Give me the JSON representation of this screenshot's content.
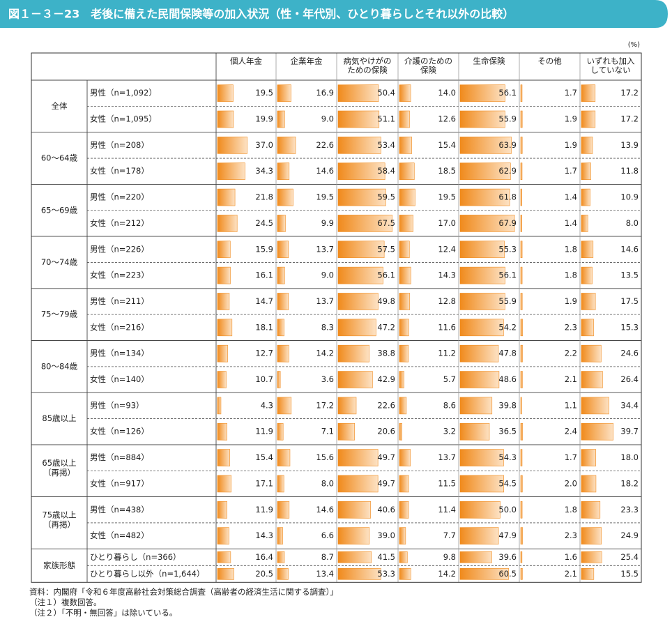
{
  "chart_data": {
    "type": "bar-table",
    "title": "図１－３－23　老後に備えた民間保険等の加入状況（性・年代別、ひとり暮らしとそれ以外の比較）",
    "unit": "(%)",
    "columns": [
      [
        "個人年金"
      ],
      [
        "企業年金"
      ],
      [
        "病気やけがの",
        "ための保険"
      ],
      [
        "介護のための",
        "保険"
      ],
      [
        "生命保険"
      ],
      [
        "その他"
      ],
      [
        "いずれも加入",
        "していない"
      ]
    ],
    "groups": [
      {
        "label": [
          "全体"
        ],
        "rows": [
          {
            "label": "男性（n=1,092）",
            "values": [
              19.5,
              16.9,
              50.4,
              14.0,
              56.1,
              1.7,
              17.2
            ],
            "value_labels": [
              "19.5",
              "16.9",
              "50.4",
              "14.0",
              "56.1",
              "1.7",
              "17.2"
            ]
          },
          {
            "label": "女性（n=1,095）",
            "values": [
              19.9,
              9.0,
              51.1,
              12.6,
              55.9,
              1.9,
              17.2
            ],
            "value_labels": [
              "19.9",
              "9.0",
              "51.1",
              "12.6",
              "55.9",
              "1.9",
              "17.2"
            ]
          }
        ]
      },
      {
        "label": [
          "60～64歳"
        ],
        "rows": [
          {
            "label": "男性（n=208）",
            "values": [
              37.0,
              22.6,
              53.4,
              15.4,
              63.9,
              1.9,
              13.9
            ],
            "value_labels": [
              "37.0",
              "22.6",
              "53.4",
              "15.4",
              "63.9",
              "1.9",
              "13.9"
            ]
          },
          {
            "label": "女性（n=178）",
            "values": [
              34.3,
              14.6,
              58.4,
              18.5,
              62.9,
              1.7,
              11.8
            ],
            "value_labels": [
              "34.3",
              "14.6",
              "58.4",
              "18.5",
              "62.9",
              "1.7",
              "11.8"
            ]
          }
        ]
      },
      {
        "label": [
          "65～69歳"
        ],
        "rows": [
          {
            "label": "男性（n=220）",
            "values": [
              21.8,
              19.5,
              59.5,
              19.5,
              61.8,
              1.4,
              10.9
            ],
            "value_labels": [
              "21.8",
              "19.5",
              "59.5",
              "19.5",
              "61.8",
              "1.4",
              "10.9"
            ]
          },
          {
            "label": "女性（n=212）",
            "values": [
              24.5,
              9.9,
              67.5,
              17.0,
              67.9,
              1.4,
              8.0
            ],
            "value_labels": [
              "24.5",
              "9.9",
              "67.5",
              "17.0",
              "67.9",
              "1.4",
              "8.0"
            ]
          }
        ]
      },
      {
        "label": [
          "70～74歳"
        ],
        "rows": [
          {
            "label": "男性（n=226）",
            "values": [
              15.9,
              13.7,
              57.5,
              12.4,
              55.3,
              1.8,
              14.6
            ],
            "value_labels": [
              "15.9",
              "13.7",
              "57.5",
              "12.4",
              "55.3",
              "1.8",
              "14.6"
            ]
          },
          {
            "label": "女性（n=223）",
            "values": [
              16.1,
              9.0,
              56.1,
              14.3,
              56.1,
              1.8,
              13.5
            ],
            "value_labels": [
              "16.1",
              "9.0",
              "56.1",
              "14.3",
              "56.1",
              "1.8",
              "13.5"
            ]
          }
        ]
      },
      {
        "label": [
          "75～79歳"
        ],
        "rows": [
          {
            "label": "男性（n=211）",
            "values": [
              14.7,
              13.7,
              49.8,
              12.8,
              55.9,
              1.9,
              17.5
            ],
            "value_labels": [
              "14.7",
              "13.7",
              "49.8",
              "12.8",
              "55.9",
              "1.9",
              "17.5"
            ]
          },
          {
            "label": "女性（n=216）",
            "values": [
              18.1,
              8.3,
              47.2,
              11.6,
              54.2,
              2.3,
              15.3
            ],
            "value_labels": [
              "18.1",
              "8.3",
              "47.2",
              "11.6",
              "54.2",
              "2.3",
              "15.3"
            ]
          }
        ]
      },
      {
        "label": [
          "80～84歳"
        ],
        "rows": [
          {
            "label": "男性（n=134）",
            "values": [
              12.7,
              14.2,
              38.8,
              11.2,
              47.8,
              2.2,
              24.6
            ],
            "value_labels": [
              "12.7",
              "14.2",
              "38.8",
              "11.2",
              "47.8",
              "2.2",
              "24.6"
            ]
          },
          {
            "label": "女性（n=140）",
            "values": [
              10.7,
              3.6,
              42.9,
              5.7,
              48.6,
              2.1,
              26.4
            ],
            "value_labels": [
              "10.7",
              "3.6",
              "42.9",
              "5.7",
              "48.6",
              "2.1",
              "26.4"
            ]
          }
        ]
      },
      {
        "label": [
          "85歳以上"
        ],
        "rows": [
          {
            "label": "男性（n=93）",
            "values": [
              4.3,
              17.2,
              22.6,
              8.6,
              39.8,
              1.1,
              34.4
            ],
            "value_labels": [
              "4.3",
              "17.2",
              "22.6",
              "8.6",
              "39.8",
              "1.1",
              "34.4"
            ]
          },
          {
            "label": "女性（n=126）",
            "values": [
              11.9,
              7.1,
              20.6,
              3.2,
              36.5,
              2.4,
              39.7
            ],
            "value_labels": [
              "11.9",
              "7.1",
              "20.6",
              "3.2",
              "36.5",
              "2.4",
              "39.7"
            ]
          }
        ]
      },
      {
        "label": [
          "65歳以上",
          "（再掲）"
        ],
        "rows": [
          {
            "label": "男性（n=884）",
            "values": [
              15.4,
              15.6,
              49.7,
              13.7,
              54.3,
              1.7,
              18.0
            ],
            "value_labels": [
              "15.4",
              "15.6",
              "49.7",
              "13.7",
              "54.3",
              "1.7",
              "18.0"
            ]
          },
          {
            "label": "女性（n=917）",
            "values": [
              17.1,
              8.0,
              49.7,
              11.5,
              54.5,
              2.0,
              18.2
            ],
            "value_labels": [
              "17.1",
              "8.0",
              "49.7",
              "11.5",
              "54.5",
              "2.0",
              "18.2"
            ]
          }
        ]
      },
      {
        "label": [
          "75歳以上",
          "（再掲）"
        ],
        "rows": [
          {
            "label": "男性（n=438）",
            "values": [
              11.9,
              14.6,
              40.6,
              11.4,
              50.0,
              1.8,
              23.3
            ],
            "value_labels": [
              "11.9",
              "14.6",
              "40.6",
              "11.4",
              "50.0",
              "1.8",
              "23.3"
            ]
          },
          {
            "label": "女性（n=482）",
            "values": [
              14.3,
              6.6,
              39.0,
              7.7,
              47.9,
              2.3,
              24.9
            ],
            "value_labels": [
              "14.3",
              "6.6",
              "39.0",
              "7.7",
              "47.9",
              "2.3",
              "24.9"
            ]
          }
        ]
      },
      {
        "label": [
          "家族形態"
        ],
        "rows": [
          {
            "label": "ひとり暮らし（n=366）",
            "values": [
              16.4,
              8.7,
              41.5,
              9.8,
              39.6,
              1.6,
              25.4
            ],
            "value_labels": [
              "16.4",
              "8.7",
              "41.5",
              "9.8",
              "39.6",
              "1.6",
              "25.4"
            ]
          },
          {
            "label": "ひとり暮らし以外（n=1,644）",
            "values": [
              20.5,
              13.4,
              53.3,
              14.2,
              60.5,
              2.1,
              15.5
            ],
            "value_labels": [
              "20.5",
              "13.4",
              "53.3",
              "14.2",
              "60.5",
              "2.1",
              "15.5"
            ]
          }
        ]
      }
    ],
    "notes": [
      "資料：内閣府「令和６年度高齢社会対策総合調査（高齢者の経済生活に関する調査）」",
      "（注１）複数回答。",
      "（注２）「不明・無回答」は除いている。"
    ]
  }
}
